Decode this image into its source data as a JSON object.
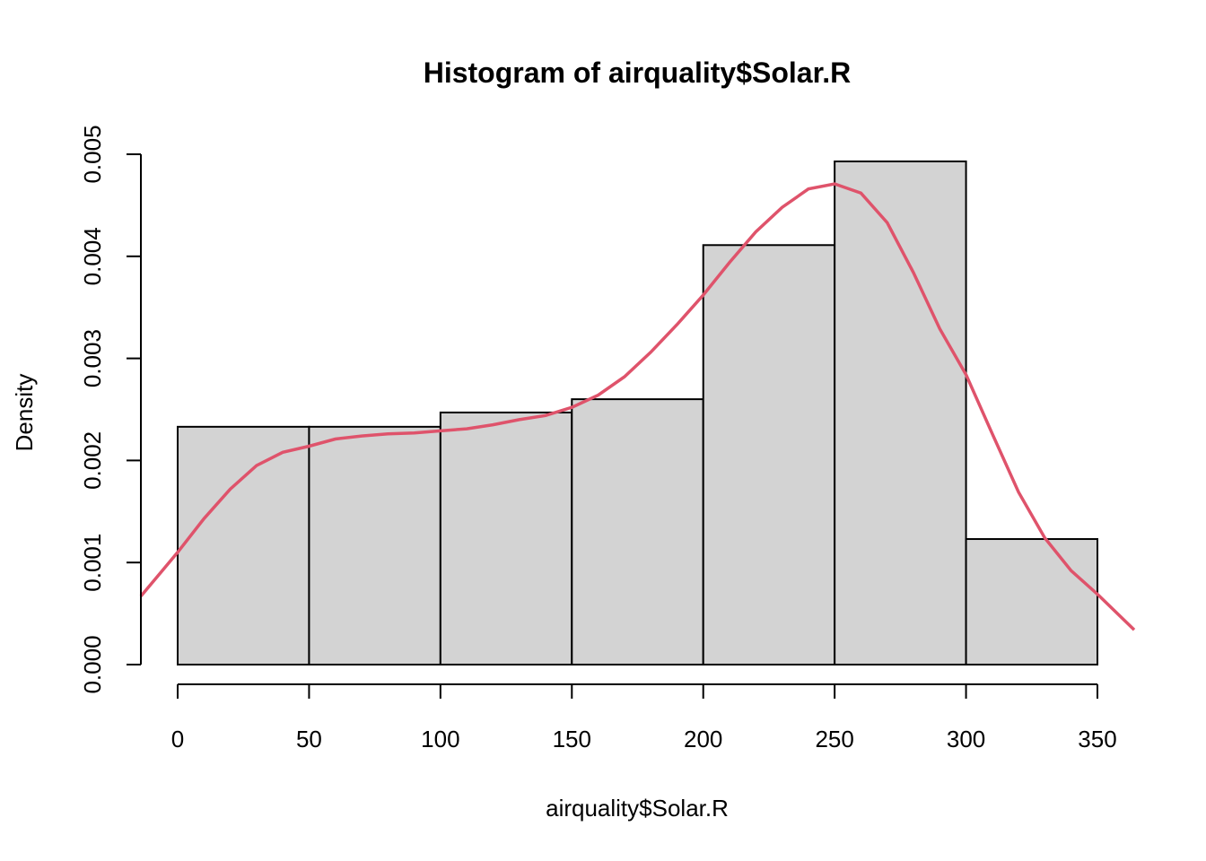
{
  "chart_data": {
    "type": "bar",
    "title": "Histogram of airquality$Solar.R",
    "xlabel": "airquality$Solar.R",
    "ylabel": "Density",
    "bins": [
      {
        "from": 0,
        "to": 50,
        "density": 0.00233
      },
      {
        "from": 50,
        "to": 100,
        "density": 0.00233
      },
      {
        "from": 100,
        "to": 150,
        "density": 0.00247
      },
      {
        "from": 150,
        "to": 200,
        "density": 0.0026
      },
      {
        "from": 200,
        "to": 250,
        "density": 0.00411
      },
      {
        "from": 250,
        "to": 300,
        "density": 0.00493
      },
      {
        "from": 300,
        "to": 350,
        "density": 0.00123
      }
    ],
    "x_ticks": [
      0,
      50,
      100,
      150,
      200,
      250,
      300,
      350
    ],
    "x_tick_labels": [
      "0",
      "50",
      "100",
      "150",
      "200",
      "250",
      "300",
      "350"
    ],
    "y_ticks": [
      0,
      0.001,
      0.002,
      0.003,
      0.004,
      0.005
    ],
    "y_tick_labels": [
      "0.000",
      "0.001",
      "0.002",
      "0.003",
      "0.004",
      "0.005"
    ],
    "xlim": [
      -14,
      364
    ],
    "ylim": [
      0,
      0.005
    ],
    "grid": false,
    "density_curve": {
      "color": "#DF536B",
      "x": [
        -14,
        0,
        10,
        20,
        30,
        40,
        50,
        60,
        70,
        80,
        90,
        100,
        110,
        120,
        130,
        140,
        150,
        160,
        170,
        180,
        190,
        200,
        210,
        220,
        230,
        240,
        250,
        260,
        270,
        280,
        290,
        300,
        310,
        320,
        330,
        340,
        350,
        364
      ],
      "y": [
        0.00067,
        0.0011,
        0.00143,
        0.00172,
        0.00195,
        0.00208,
        0.00214,
        0.00221,
        0.00224,
        0.00226,
        0.00227,
        0.00229,
        0.00231,
        0.00235,
        0.0024,
        0.00244,
        0.00252,
        0.00264,
        0.00282,
        0.00306,
        0.00333,
        0.00362,
        0.00394,
        0.00424,
        0.00448,
        0.00466,
        0.00471,
        0.00462,
        0.00433,
        0.00384,
        0.00329,
        0.00284,
        0.00226,
        0.00169,
        0.00124,
        0.00092,
        0.00069,
        0.00034
      ]
    },
    "colors": {
      "bar_fill": "#d3d3d3",
      "bar_stroke": "#000000",
      "background": "#ffffff"
    }
  }
}
